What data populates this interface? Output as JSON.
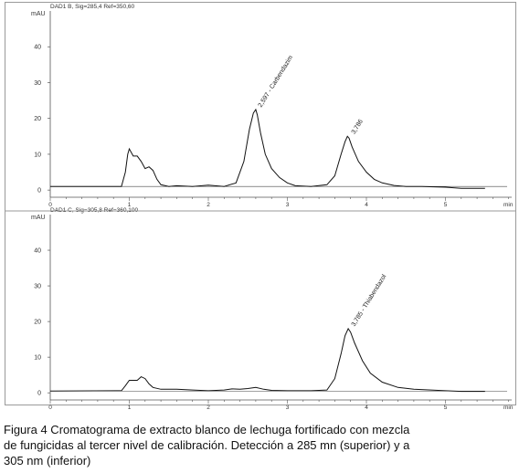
{
  "chart_data": [
    {
      "type": "line",
      "title": "DAD1 B, Sig=285,4 Ref=350,60",
      "ylabel": "mAU",
      "xlabel": "min",
      "xlim": [
        0,
        5.8
      ],
      "ylim": [
        -2,
        50
      ],
      "yticks": [
        0,
        10,
        20,
        30,
        40
      ],
      "xticks": [
        0,
        1,
        2,
        3,
        4,
        5
      ],
      "grid": false,
      "series": [
        {
          "x": [
            0,
            0.9,
            0.95,
            0.98,
            1.0,
            1.05,
            1.1,
            1.15,
            1.2,
            1.25,
            1.3,
            1.35,
            1.4,
            1.5,
            1.6,
            1.8,
            2.0,
            2.2,
            2.35,
            2.45,
            2.52,
            2.57,
            2.6,
            2.62,
            2.66,
            2.72,
            2.8,
            2.9,
            3.0,
            3.1,
            3.3,
            3.5,
            3.6,
            3.68,
            3.73,
            3.76,
            3.78,
            3.82,
            3.9,
            4.0,
            4.1,
            4.2,
            4.35,
            4.5,
            4.7,
            5.0,
            5.2,
            5.5
          ],
          "y": [
            1,
            1,
            5,
            10,
            11.5,
            9.5,
            9.5,
            8,
            6,
            6.5,
            5.5,
            3,
            1.5,
            1,
            1.2,
            1,
            1.4,
            1,
            2,
            8,
            17,
            21.5,
            22.5,
            21,
            16,
            10,
            6,
            3.5,
            2,
            1.2,
            1,
            1.5,
            4,
            10,
            13.5,
            15,
            14.5,
            12,
            8,
            5,
            3,
            2,
            1.3,
            1,
            1,
            0.8,
            0.5,
            0.5
          ]
        }
      ],
      "annotations": [
        {
          "text": "2,597 - Carbendazim",
          "x": 2.6,
          "y": 22.5
        },
        {
          "text": "3,786",
          "x": 3.78,
          "y": 15
        }
      ]
    },
    {
      "type": "line",
      "title": "DAD1 C, Sig=305,8 Ref=360,100",
      "ylabel": "mAU",
      "xlabel": "min",
      "xlim": [
        0,
        5.8
      ],
      "ylim": [
        -2,
        50
      ],
      "yticks": [
        0,
        10,
        20,
        30,
        40
      ],
      "xticks": [
        0,
        1,
        2,
        3,
        4,
        5
      ],
      "grid": false,
      "series": [
        {
          "x": [
            0,
            0.9,
            0.95,
            1.0,
            1.05,
            1.1,
            1.15,
            1.2,
            1.25,
            1.3,
            1.4,
            1.6,
            1.8,
            2.0,
            2.2,
            2.3,
            2.4,
            2.5,
            2.6,
            2.7,
            2.8,
            3.0,
            3.3,
            3.5,
            3.6,
            3.68,
            3.73,
            3.77,
            3.8,
            3.85,
            3.95,
            4.05,
            4.2,
            4.4,
            4.6,
            5.0,
            5.2,
            5.5
          ],
          "y": [
            0.5,
            0.6,
            2,
            3.5,
            3.5,
            3.5,
            4.5,
            4,
            2.5,
            1.5,
            1,
            1,
            0.8,
            0.6,
            0.8,
            1.1,
            1,
            1.2,
            1.5,
            1,
            0.7,
            0.6,
            0.6,
            0.8,
            4,
            11,
            16,
            18,
            17,
            14,
            9,
            5.5,
            3,
            1.5,
            1,
            0.6,
            0.4,
            0.4
          ]
        }
      ],
      "annotations": [
        {
          "text": "3,785 - Thiabendazol",
          "x": 3.78,
          "y": 18
        }
      ]
    }
  ],
  "caption": {
    "line1": "Figura 4 Cromatograma de extracto blanco de lechuga fortificado con mezcla",
    "line2": "de fungicidas al tercer nivel de calibración. Detección a 285 mn (superior) y a",
    "line3": "305 nm (inferior)"
  }
}
